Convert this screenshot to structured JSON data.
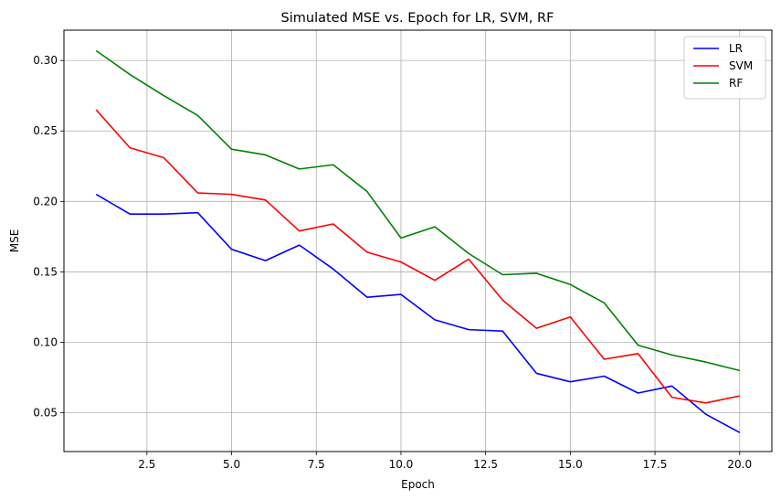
{
  "chart_data": {
    "type": "line",
    "title": "Simulated MSE vs. Epoch for LR, SVM, RF",
    "xlabel": "Epoch",
    "ylabel": "MSE",
    "xlim": [
      0.05,
      20.95
    ],
    "ylim": [
      0.0225,
      0.3215
    ],
    "xticks": [
      2.5,
      5.0,
      7.5,
      10.0,
      12.5,
      15.0,
      17.5,
      20.0
    ],
    "xtick_labels": [
      "2.5",
      "5.0",
      "7.5",
      "10.0",
      "12.5",
      "15.0",
      "17.5",
      "20.0"
    ],
    "yticks": [
      0.05,
      0.1,
      0.15,
      0.2,
      0.25,
      0.3
    ],
    "ytick_labels": [
      "0.05",
      "0.10",
      "0.15",
      "0.20",
      "0.25",
      "0.30"
    ],
    "grid": true,
    "legend_position": "top-right",
    "x": [
      1,
      2,
      3,
      4,
      5,
      6,
      7,
      8,
      9,
      10,
      11,
      12,
      13,
      14,
      15,
      16,
      17,
      18,
      19,
      20
    ],
    "series": [
      {
        "name": "LR",
        "color": "#0000ff",
        "values": [
          0.205,
          0.191,
          0.191,
          0.192,
          0.166,
          0.158,
          0.169,
          0.152,
          0.132,
          0.134,
          0.116,
          0.109,
          0.108,
          0.078,
          0.072,
          0.076,
          0.064,
          0.069,
          0.049,
          0.036
        ]
      },
      {
        "name": "SVM",
        "color": "#ff0000",
        "values": [
          0.265,
          0.238,
          0.231,
          0.206,
          0.205,
          0.201,
          0.179,
          0.184,
          0.164,
          0.157,
          0.144,
          0.159,
          0.13,
          0.11,
          0.118,
          0.088,
          0.092,
          0.061,
          0.057,
          0.062
        ]
      },
      {
        "name": "RF",
        "color": "#008000",
        "values": [
          0.307,
          0.29,
          0.275,
          0.261,
          0.237,
          0.233,
          0.223,
          0.226,
          0.207,
          0.174,
          0.182,
          0.163,
          0.148,
          0.149,
          0.141,
          0.128,
          0.098,
          0.091,
          0.086,
          0.08
        ]
      }
    ]
  }
}
